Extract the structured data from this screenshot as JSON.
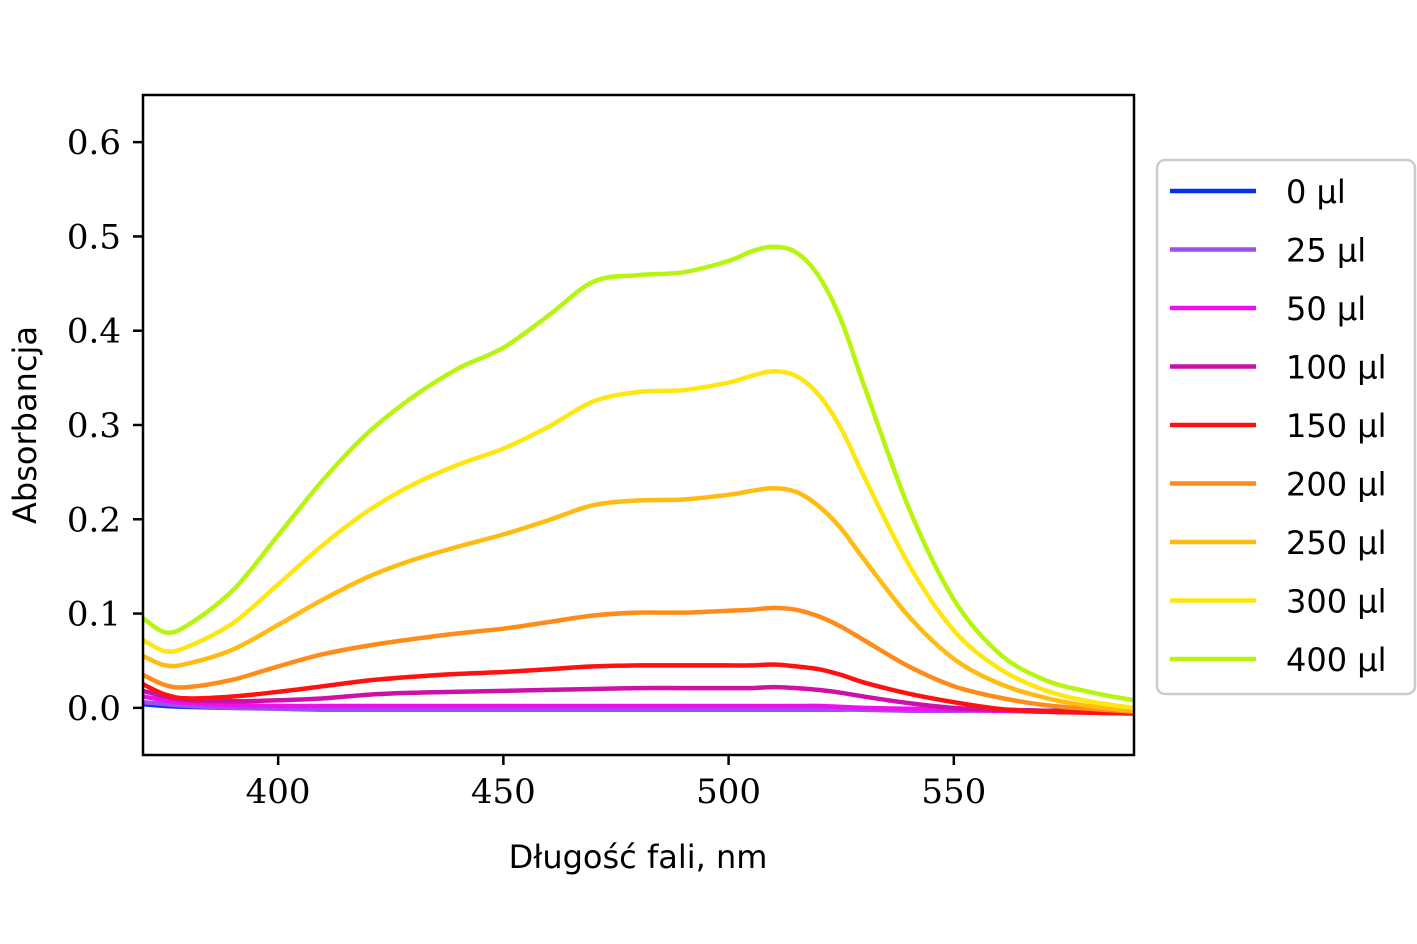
{
  "chart_data": {
    "type": "line",
    "xlabel": "Długość fali, nm",
    "ylabel": "Absorbancja",
    "xlim": [
      370,
      590
    ],
    "ylim": [
      -0.05,
      0.65
    ],
    "xticks": [
      400,
      450,
      500,
      550
    ],
    "xtick_labels": [
      "400",
      "450",
      "500",
      "550"
    ],
    "yticks": [
      0.0,
      0.1,
      0.2,
      0.3,
      0.4,
      0.5,
      0.6
    ],
    "ytick_labels": [
      "0.0",
      "0.1",
      "0.2",
      "0.3",
      "0.4",
      "0.5",
      "0.6"
    ],
    "grid": false,
    "legend_position": "outside-right",
    "x": [
      370,
      375,
      380,
      390,
      400,
      410,
      420,
      430,
      440,
      450,
      460,
      470,
      480,
      490,
      500,
      505,
      510,
      515,
      520,
      525,
      530,
      540,
      550,
      560,
      570,
      580,
      590
    ],
    "series": [
      {
        "name": "0 μl",
        "color": "#0033ee",
        "values": [
          0.004,
          0.002,
          0.001,
          0.0,
          0.0,
          0.0,
          -0.001,
          -0.001,
          -0.001,
          -0.001,
          -0.001,
          -0.001,
          -0.001,
          -0.001,
          -0.001,
          -0.001,
          -0.001,
          -0.001,
          -0.001,
          -0.001,
          -0.001,
          -0.002,
          -0.002,
          -0.002,
          -0.003,
          -0.003,
          -0.004
        ]
      },
      {
        "name": "25 μl",
        "color": "#9d4ff0",
        "values": [
          0.006,
          0.004,
          0.002,
          0.0,
          -0.001,
          -0.002,
          -0.002,
          -0.002,
          -0.002,
          -0.002,
          -0.002,
          -0.002,
          -0.002,
          -0.002,
          -0.002,
          -0.002,
          -0.002,
          -0.002,
          -0.002,
          -0.002,
          -0.002,
          -0.003,
          -0.003,
          -0.003,
          -0.004,
          -0.004,
          -0.005
        ]
      },
      {
        "name": "50 μl",
        "color": "#ee11ee",
        "values": [
          0.012,
          0.008,
          0.005,
          0.003,
          0.002,
          0.002,
          0.002,
          0.002,
          0.002,
          0.002,
          0.002,
          0.002,
          0.002,
          0.002,
          0.002,
          0.002,
          0.002,
          0.002,
          0.002,
          0.001,
          0.0,
          -0.001,
          -0.002,
          -0.003,
          -0.004,
          -0.005,
          -0.006
        ]
      },
      {
        "name": "100 μl",
        "color": "#cc11aa",
        "values": [
          0.018,
          0.012,
          0.008,
          0.007,
          0.008,
          0.01,
          0.014,
          0.016,
          0.017,
          0.018,
          0.019,
          0.02,
          0.021,
          0.021,
          0.021,
          0.021,
          0.022,
          0.021,
          0.019,
          0.016,
          0.012,
          0.005,
          0.0,
          -0.002,
          -0.003,
          -0.004,
          -0.005
        ]
      },
      {
        "name": "150 μl",
        "color": "#ff1111",
        "values": [
          0.025,
          0.014,
          0.01,
          0.012,
          0.017,
          0.023,
          0.029,
          0.033,
          0.036,
          0.038,
          0.041,
          0.044,
          0.045,
          0.045,
          0.045,
          0.045,
          0.046,
          0.044,
          0.041,
          0.035,
          0.027,
          0.015,
          0.006,
          -0.001,
          -0.004,
          -0.005,
          -0.006
        ]
      },
      {
        "name": "200 μl",
        "color": "#ff8c1a",
        "values": [
          0.035,
          0.024,
          0.022,
          0.03,
          0.044,
          0.057,
          0.066,
          0.073,
          0.079,
          0.084,
          0.091,
          0.098,
          0.101,
          0.101,
          0.103,
          0.104,
          0.106,
          0.104,
          0.097,
          0.086,
          0.072,
          0.044,
          0.023,
          0.011,
          0.003,
          -0.001,
          -0.004
        ]
      },
      {
        "name": "250 μl",
        "color": "#ffbb11",
        "values": [
          0.055,
          0.045,
          0.047,
          0.062,
          0.088,
          0.115,
          0.139,
          0.157,
          0.171,
          0.184,
          0.199,
          0.215,
          0.22,
          0.221,
          0.226,
          0.23,
          0.233,
          0.229,
          0.214,
          0.19,
          0.158,
          0.097,
          0.052,
          0.026,
          0.011,
          0.002,
          -0.003
        ]
      },
      {
        "name": "300 μl",
        "color": "#ffe611",
        "values": [
          0.072,
          0.06,
          0.065,
          0.09,
          0.131,
          0.173,
          0.209,
          0.237,
          0.258,
          0.275,
          0.298,
          0.325,
          0.335,
          0.337,
          0.345,
          0.352,
          0.357,
          0.352,
          0.332,
          0.296,
          0.246,
          0.152,
          0.082,
          0.042,
          0.019,
          0.007,
          0.0
        ]
      },
      {
        "name": "400 μl",
        "color": "#b7f510",
        "values": [
          0.095,
          0.08,
          0.088,
          0.125,
          0.183,
          0.242,
          0.292,
          0.33,
          0.36,
          0.382,
          0.416,
          0.452,
          0.459,
          0.462,
          0.474,
          0.484,
          0.489,
          0.483,
          0.458,
          0.411,
          0.343,
          0.212,
          0.115,
          0.058,
          0.03,
          0.017,
          0.008
        ]
      }
    ]
  }
}
